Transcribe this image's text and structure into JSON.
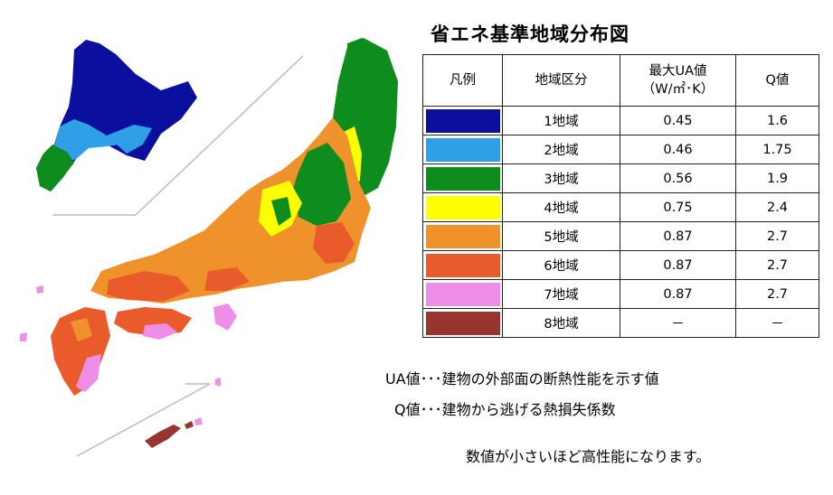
{
  "title": "省エネ基準地域分布図",
  "table": {
    "headers": [
      "凡例",
      "地域区分",
      "最大UA値",
      "（W/㎡･K）",
      "Q値"
    ],
    "rows": [
      {
        "color": "#0a0f9e",
        "region": "1地域",
        "ua": "0.45",
        "q": "1.6"
      },
      {
        "color": "#2f9fe8",
        "region": "2地域",
        "ua": "0.46",
        "q": "1.75"
      },
      {
        "color": "#0f8c1e",
        "region": "3地域",
        "ua": "0.56",
        "q": "1.9"
      },
      {
        "color": "#ffff00",
        "region": "4地域",
        "ua": "0.75",
        "q": "2.4"
      },
      {
        "color": "#f0922c",
        "region": "5地域",
        "ua": "0.87",
        "q": "2.7"
      },
      {
        "color": "#ea5b2c",
        "region": "6地域",
        "ua": "0.87",
        "q": "2.7"
      },
      {
        "color": "#ee8ee8",
        "region": "7地域",
        "ua": "0.87",
        "q": "2.7"
      },
      {
        "color": "#983530",
        "region": "8地域",
        "ua": "－",
        "q": "－"
      }
    ]
  },
  "notes": {
    "ua": "UA値･･･建物の外部面の断熱性能を示す値",
    "q": "Q値･･･建物から逃げる熱損失係数",
    "summary": "数値が小さいほど高性能になります。"
  }
}
